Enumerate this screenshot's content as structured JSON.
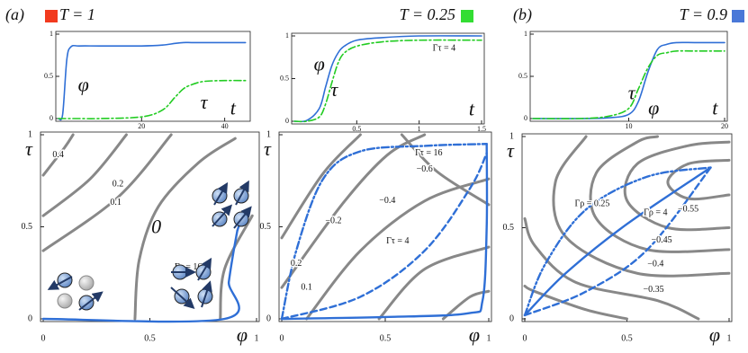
{
  "chart_data": [
    {
      "type": "line",
      "panel_label": "(a)",
      "title": "T = 1",
      "marker_color": "#f23a1e",
      "x": [
        0,
        1,
        2,
        3,
        5,
        10,
        20,
        25,
        28,
        30,
        32,
        35,
        40,
        45
      ],
      "series": [
        {
          "color": "#2f6fd6",
          "style": "solid",
          "values": [
            0,
            0.05,
            0.7,
            0.85,
            0.86,
            0.86,
            0.86,
            0.87,
            0.89,
            0.9,
            0.9,
            0.9,
            0.9,
            0.9
          ]
        },
        {
          "color": "#22cc22",
          "style": "dashdot",
          "values": [
            0,
            0,
            0,
            0,
            0,
            0,
            0.02,
            0.1,
            0.25,
            0.35,
            0.4,
            0.44,
            0.45,
            0.45
          ]
        }
      ],
      "xlim": [
        0,
        45.5
      ],
      "ylim": [
        0,
        1
      ],
      "xticks": [
        20,
        40
      ],
      "yticks": [
        0,
        0.5,
        1
      ],
      "annotations": [
        {
          "text": "φ",
          "x": 6,
          "y": 0.38
        },
        {
          "text": "τ",
          "x": 35,
          "y": 0.17
        },
        {
          "text": "t",
          "x": 42,
          "y": 0.1
        }
      ]
    },
    {
      "type": "line",
      "title": "T = 0.25",
      "marker_color": "#33dd33",
      "x": [
        0,
        0.1,
        0.2,
        0.25,
        0.3,
        0.35,
        0.4,
        0.5,
        0.7,
        1,
        1.5
      ],
      "series": [
        {
          "color": "#2f6fd6",
          "style": "solid",
          "values": [
            0,
            0.01,
            0.15,
            0.4,
            0.65,
            0.8,
            0.88,
            0.95,
            0.98,
            1,
            1
          ]
        },
        {
          "color": "#22cc22",
          "style": "dashdot",
          "values": [
            0,
            0,
            0.05,
            0.2,
            0.45,
            0.68,
            0.8,
            0.88,
            0.93,
            0.95,
            0.95
          ]
        }
      ],
      "xlim": [
        0,
        1.5
      ],
      "ylim": [
        0,
        1
      ],
      "xticks": [
        0.5,
        1,
        1.5
      ],
      "yticks": [
        0,
        0.5,
        1
      ],
      "annotations": [
        {
          "text": "φ",
          "x": 0.2,
          "y": 0.65
        },
        {
          "text": "τ",
          "x": 0.32,
          "y": 0.35
        },
        {
          "text": "t",
          "x": 1.42,
          "y": 0.12
        },
        {
          "text": "Γτ = 4",
          "x": 1.2,
          "y": 0.85
        }
      ]
    },
    {
      "type": "line",
      "panel_label": "(b)",
      "title": "T = 0.9",
      "marker_color": "#4a78d8",
      "x": [
        0,
        5,
        8,
        10,
        11,
        12,
        13,
        14,
        15,
        17,
        20
      ],
      "series": [
        {
          "color": "#2f6fd6",
          "style": "solid",
          "values": [
            0,
            0,
            0.01,
            0.05,
            0.2,
            0.55,
            0.82,
            0.88,
            0.9,
            0.9,
            0.9
          ]
        },
        {
          "color": "#22cc22",
          "style": "dashdot",
          "values": [
            0,
            0,
            0.03,
            0.12,
            0.35,
            0.6,
            0.75,
            0.78,
            0.8,
            0.8,
            0.8
          ]
        }
      ],
      "xlim": [
        0,
        20
      ],
      "ylim": [
        0,
        1
      ],
      "xticks": [
        10,
        20
      ],
      "yticks": [
        0,
        0.5,
        1
      ],
      "annotations": [
        {
          "text": "τ",
          "x": 10.3,
          "y": 0.28
        },
        {
          "text": "φ",
          "x": 12.6,
          "y": 0.1
        },
        {
          "text": "t",
          "x": 19,
          "y": 0.1
        }
      ]
    },
    {
      "type": "contour",
      "xlabel": "φ",
      "ylabel": "τ",
      "xlim": [
        0,
        1
      ],
      "ylim": [
        0,
        1
      ],
      "xticks": [
        0,
        0.5,
        1
      ],
      "yticks": [
        0,
        0.5,
        1
      ],
      "contour_color": "#888888",
      "contours": [
        {
          "x": [
            0,
            0.1,
            0.14
          ],
          "y": [
            0.78,
            0.93,
            1
          ]
        },
        {
          "x": [
            0,
            0.22,
            0.39
          ],
          "y": [
            0.56,
            0.76,
            1
          ]
        },
        {
          "x": [
            0,
            0.35,
            0.6
          ],
          "y": [
            0.37,
            0.66,
            1
          ]
        },
        {
          "x": [
            0.43,
            0.45,
            0.54,
            0.73,
            0.9
          ],
          "y": [
            0,
            0.32,
            0.61,
            0.85,
            0.98
          ]
        },
        {
          "x": [
            0.83,
            0.85,
            0.98
          ],
          "y": [
            0,
            0.27,
            0.56
          ]
        }
      ],
      "series": [
        {
          "color": "#2f6fd6",
          "style": "solid",
          "x": [
            0,
            0.85,
            0.87,
            0.89,
            0.91
          ],
          "y": [
            0,
            0,
            0.2,
            0.35,
            0.48
          ]
        },
        {
          "color": "#2f6fd6",
          "style": "dashed",
          "x": [
            0.91,
            0.94
          ],
          "y": [
            0.48,
            0.58
          ]
        }
      ],
      "annotations": [
        {
          "text": "0.4",
          "x": 0.07,
          "y": 0.89
        },
        {
          "text": "0.2",
          "x": 0.35,
          "y": 0.73
        },
        {
          "text": "0.1",
          "x": 0.34,
          "y": 0.63
        },
        {
          "text": "0",
          "x": 0.53,
          "y": 0.49
        },
        {
          "text": "Γτ = 16",
          "x": 0.68,
          "y": 0.28
        }
      ]
    },
    {
      "type": "contour",
      "xlabel": "φ",
      "ylabel": "τ",
      "xlim": [
        0,
        1
      ],
      "ylim": [
        0,
        1
      ],
      "xticks": [
        0,
        0.5,
        1
      ],
      "yticks": [
        0,
        0.5,
        1
      ],
      "contour_color": "#888888",
      "contours": [
        {
          "x": [
            0,
            0.2,
            0.38
          ],
          "y": [
            0.44,
            0.79,
            1
          ]
        },
        {
          "x": [
            0,
            0.29,
            0.51,
            0.69
          ],
          "y": [
            0.17,
            0.62,
            0.89,
            1
          ]
        },
        {
          "x": [
            0.12,
            0.38,
            0.69,
            1
          ],
          "y": [
            0,
            0.37,
            0.64,
            0.76
          ]
        },
        {
          "x": [
            0.47,
            0.69,
            1
          ],
          "y": [
            0,
            0.27,
            0.39
          ]
        },
        {
          "x": [
            0.78,
            0.91,
            1
          ],
          "y": [
            0,
            0.12,
            0.15
          ]
        },
        {
          "x": [
            0.58,
            0.75,
            1
          ],
          "y": [
            1,
            0.8,
            0.62
          ]
        }
      ],
      "series": [
        {
          "color": "#2f6fd6",
          "style": "solid",
          "x": [
            0,
            0.5,
            0.9,
            0.97,
            0.99,
            0.99
          ],
          "y": [
            0,
            0.01,
            0.03,
            0.1,
            0.5,
            0.95
          ]
        },
        {
          "color": "#2f6fd6",
          "style": "dashdot",
          "x": [
            0,
            0.07,
            0.2,
            0.38,
            0.7,
            0.99
          ],
          "y": [
            0,
            0.37,
            0.76,
            0.91,
            0.94,
            0.95
          ]
        },
        {
          "color": "#2f6fd6",
          "style": "dashed",
          "x": [
            0,
            0.38,
            0.69,
            0.91,
            0.99
          ],
          "y": [
            0,
            0.12,
            0.37,
            0.71,
            0.9
          ]
        }
      ],
      "annotations": [
        {
          "text": "−0.6",
          "x": 0.69,
          "y": 0.81
        },
        {
          "text": "−0.4",
          "x": 0.51,
          "y": 0.64
        },
        {
          "text": "−0.2",
          "x": 0.25,
          "y": 0.53
        },
        {
          "text": "0.2",
          "x": 0.07,
          "y": 0.3
        },
        {
          "text": "0.1",
          "x": 0.12,
          "y": 0.17
        },
        {
          "text": "Γτ = 16",
          "x": 0.71,
          "y": 0.9
        },
        {
          "text": "Γτ = 4",
          "x": 0.56,
          "y": 0.42
        }
      ]
    },
    {
      "type": "contour",
      "xlabel": "φ",
      "ylabel": "τ",
      "xlim": [
        0,
        1
      ],
      "ylim": [
        0,
        1
      ],
      "xticks": [
        0,
        0.5,
        1
      ],
      "yticks": [
        0,
        0.5,
        1
      ],
      "contour_color": "#888888",
      "contours": [
        {
          "x": [
            1,
            0.8,
            0.7,
            0.8,
            1
          ],
          "y": [
            0.68,
            0.66,
            0.75,
            0.85,
            0.87
          ]
        },
        {
          "x": [
            1,
            0.7,
            0.5,
            0.55,
            0.8,
            1
          ],
          "y": [
            0.5,
            0.5,
            0.65,
            0.85,
            0.95,
            0.97
          ]
        },
        {
          "x": [
            1,
            0.6,
            0.35,
            0.35,
            0.55,
            0.65
          ],
          "y": [
            0.38,
            0.38,
            0.55,
            0.8,
            0.97,
            1
          ]
        },
        {
          "x": [
            1,
            0.55,
            0.2,
            0.15,
            0.3
          ],
          "y": [
            0.25,
            0.25,
            0.45,
            0.75,
            1
          ]
        },
        {
          "x": [
            0.85,
            0.65,
            0.25,
            0.05,
            0
          ],
          "y": [
            0,
            0.1,
            0.2,
            0.4,
            0.55
          ]
        },
        {
          "x": [
            0.5,
            0.3,
            0.05,
            0
          ],
          "y": [
            0,
            0.05,
            0.15,
            0.18
          ]
        }
      ],
      "series": [
        {
          "color": "#2f6fd6",
          "style": "solid",
          "x": [
            0,
            0.2,
            0.5,
            0.91
          ],
          "y": [
            0.02,
            0.25,
            0.52,
            0.83
          ]
        },
        {
          "color": "#2f6fd6",
          "style": "dashed",
          "x": [
            0,
            0.3,
            0.6,
            0.91
          ],
          "y": [
            0.02,
            0.15,
            0.38,
            0.83
          ]
        },
        {
          "color": "#2f6fd6",
          "style": "dashdotdot",
          "x": [
            0,
            0.1,
            0.3,
            0.6,
            0.91
          ],
          "y": [
            0.02,
            0.3,
            0.6,
            0.78,
            0.83
          ]
        }
      ],
      "annotations": [
        {
          "text": "−0.55",
          "x": 0.8,
          "y": 0.6
        },
        {
          "text": "−0.45",
          "x": 0.67,
          "y": 0.43
        },
        {
          "text": "−0.4",
          "x": 0.64,
          "y": 0.3
        },
        {
          "text": "−0.35",
          "x": 0.63,
          "y": 0.16
        },
        {
          "text": "Γρ = 0.25",
          "x": 0.33,
          "y": 0.63
        },
        {
          "text": "Γρ = 4",
          "x": 0.64,
          "y": 0.58
        }
      ]
    }
  ]
}
